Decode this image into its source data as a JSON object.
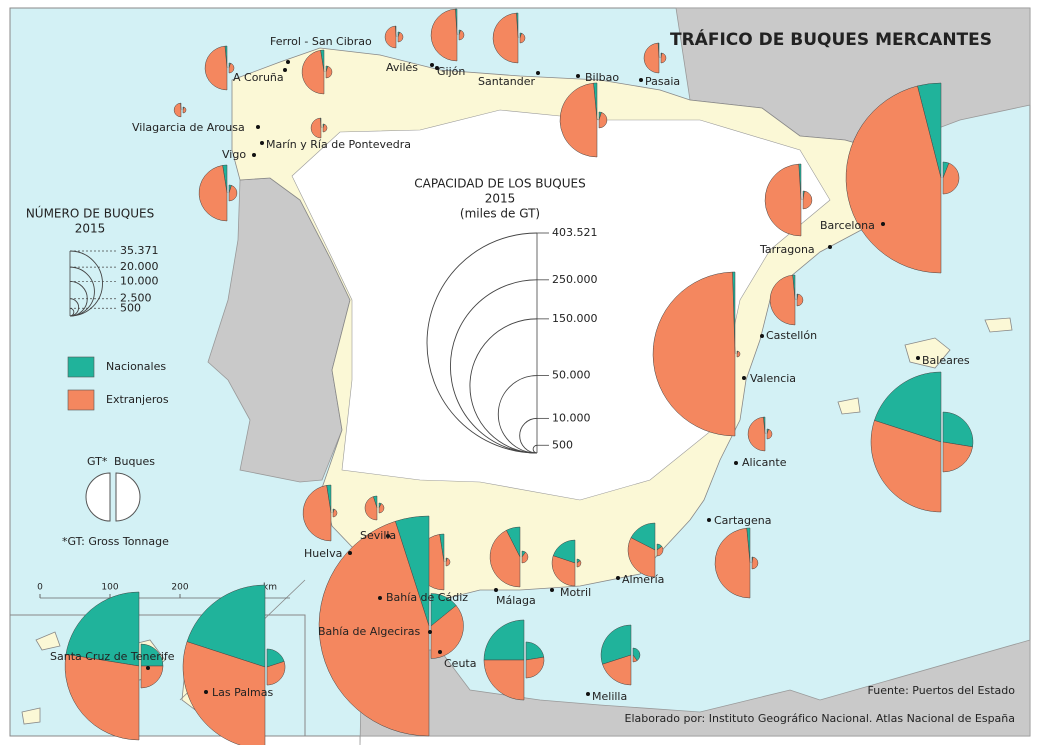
{
  "title": "TRÁFICO DE BUQUES MERCANTES",
  "legend_buques": {
    "title": "NÚMERO DE BUQUES",
    "year": "2015",
    "ticks": [
      {
        "value": 35371,
        "label": "35.371"
      },
      {
        "value": 20000,
        "label": "20.000"
      },
      {
        "value": 10000,
        "label": "10.000"
      },
      {
        "value": 2500,
        "label": "2.500"
      },
      500
    ]
  },
  "legend_capacidad": {
    "title": "CAPACIDAD DE LOS BUQUES",
    "year": "2015",
    "unit": "(miles de GT)",
    "ticks": [
      {
        "value": 403521,
        "label": "403.521"
      },
      {
        "value": 250000,
        "label": "250.000"
      },
      {
        "value": 150000,
        "label": "150.000"
      },
      {
        "value": 50000,
        "label": "50.000"
      },
      {
        "value": 10000,
        "label": "10.000"
      },
      500
    ]
  },
  "legend_colors": [
    {
      "name": "Nacionales",
      "color": "#20b39b"
    },
    {
      "name": "Extranjeros",
      "color": "#f4875f"
    }
  ],
  "legend_halves": {
    "left": "GT*",
    "right": "Buques",
    "note": "*GT: Gross Tonnage"
  },
  "scale_bar": {
    "ticks": [
      0,
      100,
      200
    ],
    "unit": "km"
  },
  "ports": [
    {
      "name": "A Coruña",
      "gt_nacionales": 480,
      "gt_extranjeros": 15620,
      "buques_nacionales": 84,
      "buques_extranjeros": 756
    },
    {
      "name": "Ferrol - San Cibrao",
      "gt_nacionales": 800,
      "gt_extranjeros": 15300,
      "buques_nacionales": 120,
      "buques_extranjeros": 1090
    },
    {
      "name": "Avilés",
      "gt_nacionales": 80,
      "gt_extranjeros": 3920,
      "buques_nacionales": 84,
      "buques_extranjeros": 756
    },
    {
      "name": "Gijón",
      "gt_nacionales": 450,
      "gt_extranjeros": 22050,
      "buques_nacionales": 84,
      "buques_extranjeros": 756
    },
    {
      "name": "Santander",
      "gt_nacionales": 420,
      "gt_extranjeros": 20380,
      "buques_nacionales": 84,
      "buques_extranjeros": 756
    },
    {
      "name": "Bilbao",
      "gt_nacionales": 1370,
      "gt_extranjeros": 44330,
      "buques_nacionales": 214,
      "buques_extranjeros": 1926
    },
    {
      "name": "Pasaia",
      "gt_nacionales": 150,
      "gt_extranjeros": 7350,
      "buques_nacionales": 42,
      "buques_extranjeros": 798
    },
    {
      "name": "Vilagarcia de Arousa",
      "gt_nacionales": 30,
      "gt_extranjeros": 1570,
      "buques_nacionales": 30,
      "buques_extranjeros": 270
    },
    {
      "name": "Marín y Ría de Pontevedra",
      "gt_nacionales": 70,
      "gt_extranjeros": 3230,
      "buques_nacionales": 54,
      "buques_extranjeros": 486
    },
    {
      "name": "Vigo",
      "gt_nacionales": 1300,
      "gt_extranjeros": 24800,
      "buques_nacionales": 214,
      "buques_extranjeros": 1926
    },
    {
      "name": "Barcelona",
      "gt_nacionales": 24000,
      "gt_extranjeros": 277000,
      "buques_nacionales": 1030,
      "buques_extranjeros": 7570
    },
    {
      "name": "Tarragona",
      "gt_nacionales": 860,
      "gt_extranjeros": 42340,
      "buques_nacionales": 135,
      "buques_extranjeros": 2565
    },
    {
      "name": "Castellón",
      "gt_nacionales": 620,
      "gt_extranjeros": 20180,
      "buques_nacionales": 60,
      "buques_extranjeros": 1140
    },
    {
      "name": "Valencia",
      "gt_nacionales": 2200,
      "gt_extranjeros": 222000,
      "buques_nacionales": 30,
      "buques_extranjeros": 270
    },
    {
      "name": "Baleares",
      "gt_nacionales": 65400,
      "gt_extranjeros": 98000,
      "buques_nacionales": 16600,
      "buques_extranjeros": 13500
    },
    {
      "name": "Alicante",
      "gt_nacionales": 290,
      "gt_extranjeros": 9310,
      "buques_nacionales": 84,
      "buques_extranjeros": 756
    },
    {
      "name": "Cartagena",
      "gt_nacionales": 1230,
      "gt_extranjeros": 39670,
      "buques_nacionales": 60,
      "buques_extranjeros": 1140
    },
    {
      "name": "Almería",
      "gt_nacionales": 8500,
      "gt_extranjeros": 15800,
      "buques_nacionales": 360,
      "buques_extranjeros": 840
    },
    {
      "name": "Motril",
      "gt_nacionales": 7000,
      "gt_extranjeros": 10600,
      "buques_nacionales": 160,
      "buques_extranjeros": 380
    },
    {
      "name": "Málaga",
      "gt_nacionales": 4500,
      "gt_extranjeros": 25500,
      "buques_nacionales": 240,
      "buques_extranjeros": 960
    },
    {
      "name": "Bahía de Cádiz",
      "gt_nacionales": 1300,
      "gt_extranjeros": 24800,
      "buques_nacionales": 54,
      "buques_extranjeros": 486
    },
    {
      "name": "Sevilla",
      "gt_nacionales": 480,
      "gt_extranjeros": 4320,
      "buques_nacionales": 126,
      "buques_extranjeros": 714
    },
    {
      "name": "Huelva",
      "gt_nacionales": 1300,
      "gt_extranjeros": 24800,
      "buques_nacionales": 54,
      "buques_extranjeros": 486
    },
    {
      "name": "Bahía de Algeciras",
      "gt_nacionales": 40000,
      "gt_extranjeros": 363521,
      "buques_nacionales": 10000,
      "buques_extranjeros": 25371
    },
    {
      "name": "Ceuta",
      "gt_nacionales": 26700,
      "gt_extranjeros": 26700,
      "buques_nacionales": 4900,
      "buques_extranjeros": 6000
    },
    {
      "name": "Melilla",
      "gt_nacionales": 18000,
      "gt_extranjeros": 12000,
      "buques_nacionales": 1310,
      "buques_extranjeros": 330
    },
    {
      "name": "Santa Cruz de Tenerife",
      "gt_nacionales": 82000,
      "gt_extranjeros": 100600,
      "buques_nacionales": 8100,
      "buques_extranjeros": 8100
    },
    {
      "name": "Las Palmas",
      "gt_nacionales": 89700,
      "gt_extranjeros": 134500,
      "buques_nacionales": 4360,
      "buques_extranjeros": 6540
    }
  ],
  "source": "Fuente: Puertos del Estado",
  "credit": "Elaborado por: Instituto Geográfico Nacional. Atlas Nacional de España"
}
